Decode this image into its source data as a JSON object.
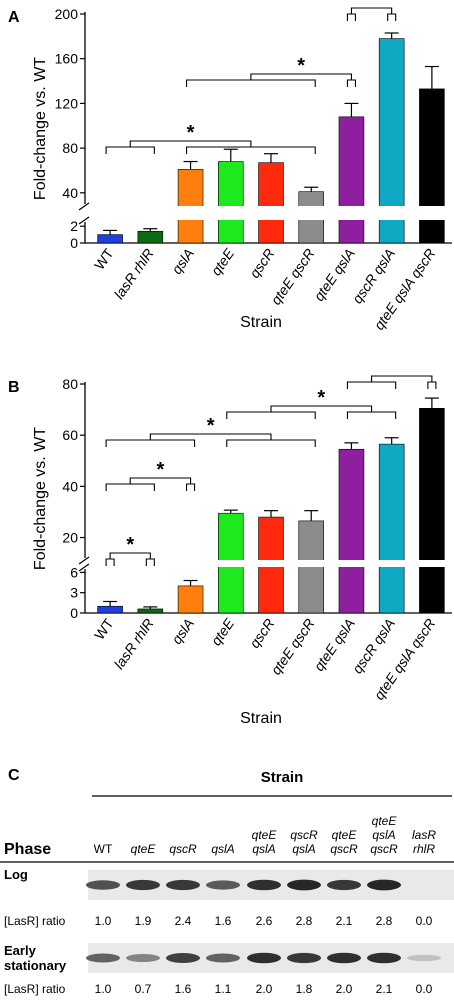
{
  "panels": [
    {
      "label": "A",
      "chart_data": {
        "type": "bar",
        "ylabel": "Fold-change vs. WT",
        "xlabel": "Strain",
        "categories": [
          "WT",
          "lasR rhlR",
          "qslA",
          "qteE",
          "qscR",
          "qteE qscR",
          "qteE qslA",
          "qscR qslA",
          "qteE qslA qscR"
        ],
        "values": [
          1.0,
          1.4,
          61,
          68,
          67,
          41,
          108,
          178,
          133
        ],
        "errors": [
          0.5,
          0.3,
          7,
          11,
          8,
          4,
          12,
          5,
          20
        ],
        "colors": [
          "#1f3fe0",
          "#0b6a13",
          "#ff7f0e",
          "#1ee81e",
          "#ff2a0e",
          "#8c8c8c",
          "#8e1f9e",
          "#10a9c4",
          "#000000"
        ],
        "y_axis": {
          "lower_ticks": [
            0,
            2
          ],
          "lower_range": [
            0,
            2.5
          ],
          "upper_ticks": [
            40,
            80,
            120,
            160,
            200
          ],
          "upper_range": [
            30,
            200
          ]
        },
        "significance": [
          {
            "from": [
              "WT",
              "lasR rhlR"
            ],
            "to": [
              "qslA",
              "qteE",
              "qscR",
              "qteE qscR"
            ],
            "label": "*"
          },
          {
            "from": [
              "qslA",
              "qteE",
              "qscR",
              "qteE qscR"
            ],
            "to": [
              "qteE qslA"
            ],
            "label": "*"
          },
          {
            "from": [
              "qteE qslA"
            ],
            "to": [
              "qscR qslA"
            ],
            "label": "*"
          }
        ]
      }
    },
    {
      "label": "B",
      "chart_data": {
        "type": "bar",
        "ylabel": "Fold-change vs. WT",
        "xlabel": "Strain",
        "categories": [
          "WT",
          "lasR rhlR",
          "qslA",
          "qteE",
          "qscR",
          "qteE qscR",
          "qteE qslA",
          "qscR qslA",
          "qteE qslA qscR"
        ],
        "values": [
          1.0,
          0.6,
          4.0,
          29.5,
          28,
          26.5,
          54.5,
          56.5,
          70.5
        ],
        "errors": [
          0.7,
          0.3,
          0.8,
          1.2,
          2.5,
          4.0,
          2.5,
          2.5,
          4.0
        ],
        "colors": [
          "#1f3fe0",
          "#0b6a13",
          "#ff7f0e",
          "#1ee81e",
          "#ff2a0e",
          "#8c8c8c",
          "#8e1f9e",
          "#10a9c4",
          "#000000"
        ],
        "y_axis": {
          "lower_ticks": [
            0,
            3,
            6
          ],
          "lower_range": [
            0,
            6.5
          ],
          "upper_ticks": [
            20,
            40,
            60,
            80
          ],
          "upper_range": [
            12,
            80
          ]
        },
        "significance": [
          {
            "from": [
              "WT"
            ],
            "to": [
              "lasR rhlR"
            ],
            "label": "*"
          },
          {
            "from": [
              "WT",
              "lasR rhlR"
            ],
            "to": [
              "qslA"
            ],
            "label": "*"
          },
          {
            "from": [
              "WT",
              "lasR rhlR",
              "qslA"
            ],
            "to": [
              "qteE",
              "qscR",
              "qteE qscR"
            ],
            "label": "*"
          },
          {
            "from": [
              "qteE",
              "qscR",
              "qteE qscR"
            ],
            "to": [
              "qteE qslA",
              "qscR qslA"
            ],
            "label": "*"
          },
          {
            "from": [
              "qteE qslA",
              "qscR qslA"
            ],
            "to": [
              "qteE qslA qscR"
            ],
            "label": "*"
          }
        ]
      }
    }
  ],
  "panelC": {
    "label": "C",
    "title": "Strain",
    "phase_header": "Phase",
    "columns": [
      {
        "lines": [
          "WT"
        ],
        "italic": false
      },
      {
        "lines": [
          "qteE"
        ],
        "italic": true
      },
      {
        "lines": [
          "qscR"
        ],
        "italic": true
      },
      {
        "lines": [
          "qslA"
        ],
        "italic": true
      },
      {
        "lines": [
          "qteE",
          "qslA"
        ],
        "italic": true
      },
      {
        "lines": [
          "qscR",
          "qslA"
        ],
        "italic": true
      },
      {
        "lines": [
          "qteE",
          "qscR"
        ],
        "italic": true
      },
      {
        "lines": [
          "qteE",
          "qslA",
          "qscR"
        ],
        "italic": true
      },
      {
        "lines": [
          "lasR",
          "rhlR"
        ],
        "italic": true
      }
    ],
    "rows": [
      {
        "phase_lines": [
          "Log"
        ],
        "ratio_label": "[LasR] ratio",
        "ratios": [
          "1.0",
          "1.9",
          "2.4",
          "1.6",
          "2.6",
          "2.8",
          "2.1",
          "2.8",
          "0.0"
        ],
        "band_intensity": [
          0.7,
          0.85,
          0.85,
          0.65,
          0.9,
          0.95,
          0.85,
          0.95,
          0.0
        ]
      },
      {
        "phase_lines": [
          "Early",
          "stationary"
        ],
        "ratio_label": "[LasR] ratio",
        "ratios": [
          "1.0",
          "0.7",
          "1.6",
          "1.1",
          "2.0",
          "1.8",
          "2.0",
          "2.1",
          "0.0"
        ],
        "band_intensity": [
          0.6,
          0.4,
          0.8,
          0.6,
          0.9,
          0.85,
          0.9,
          0.9,
          0.05
        ]
      }
    ]
  }
}
